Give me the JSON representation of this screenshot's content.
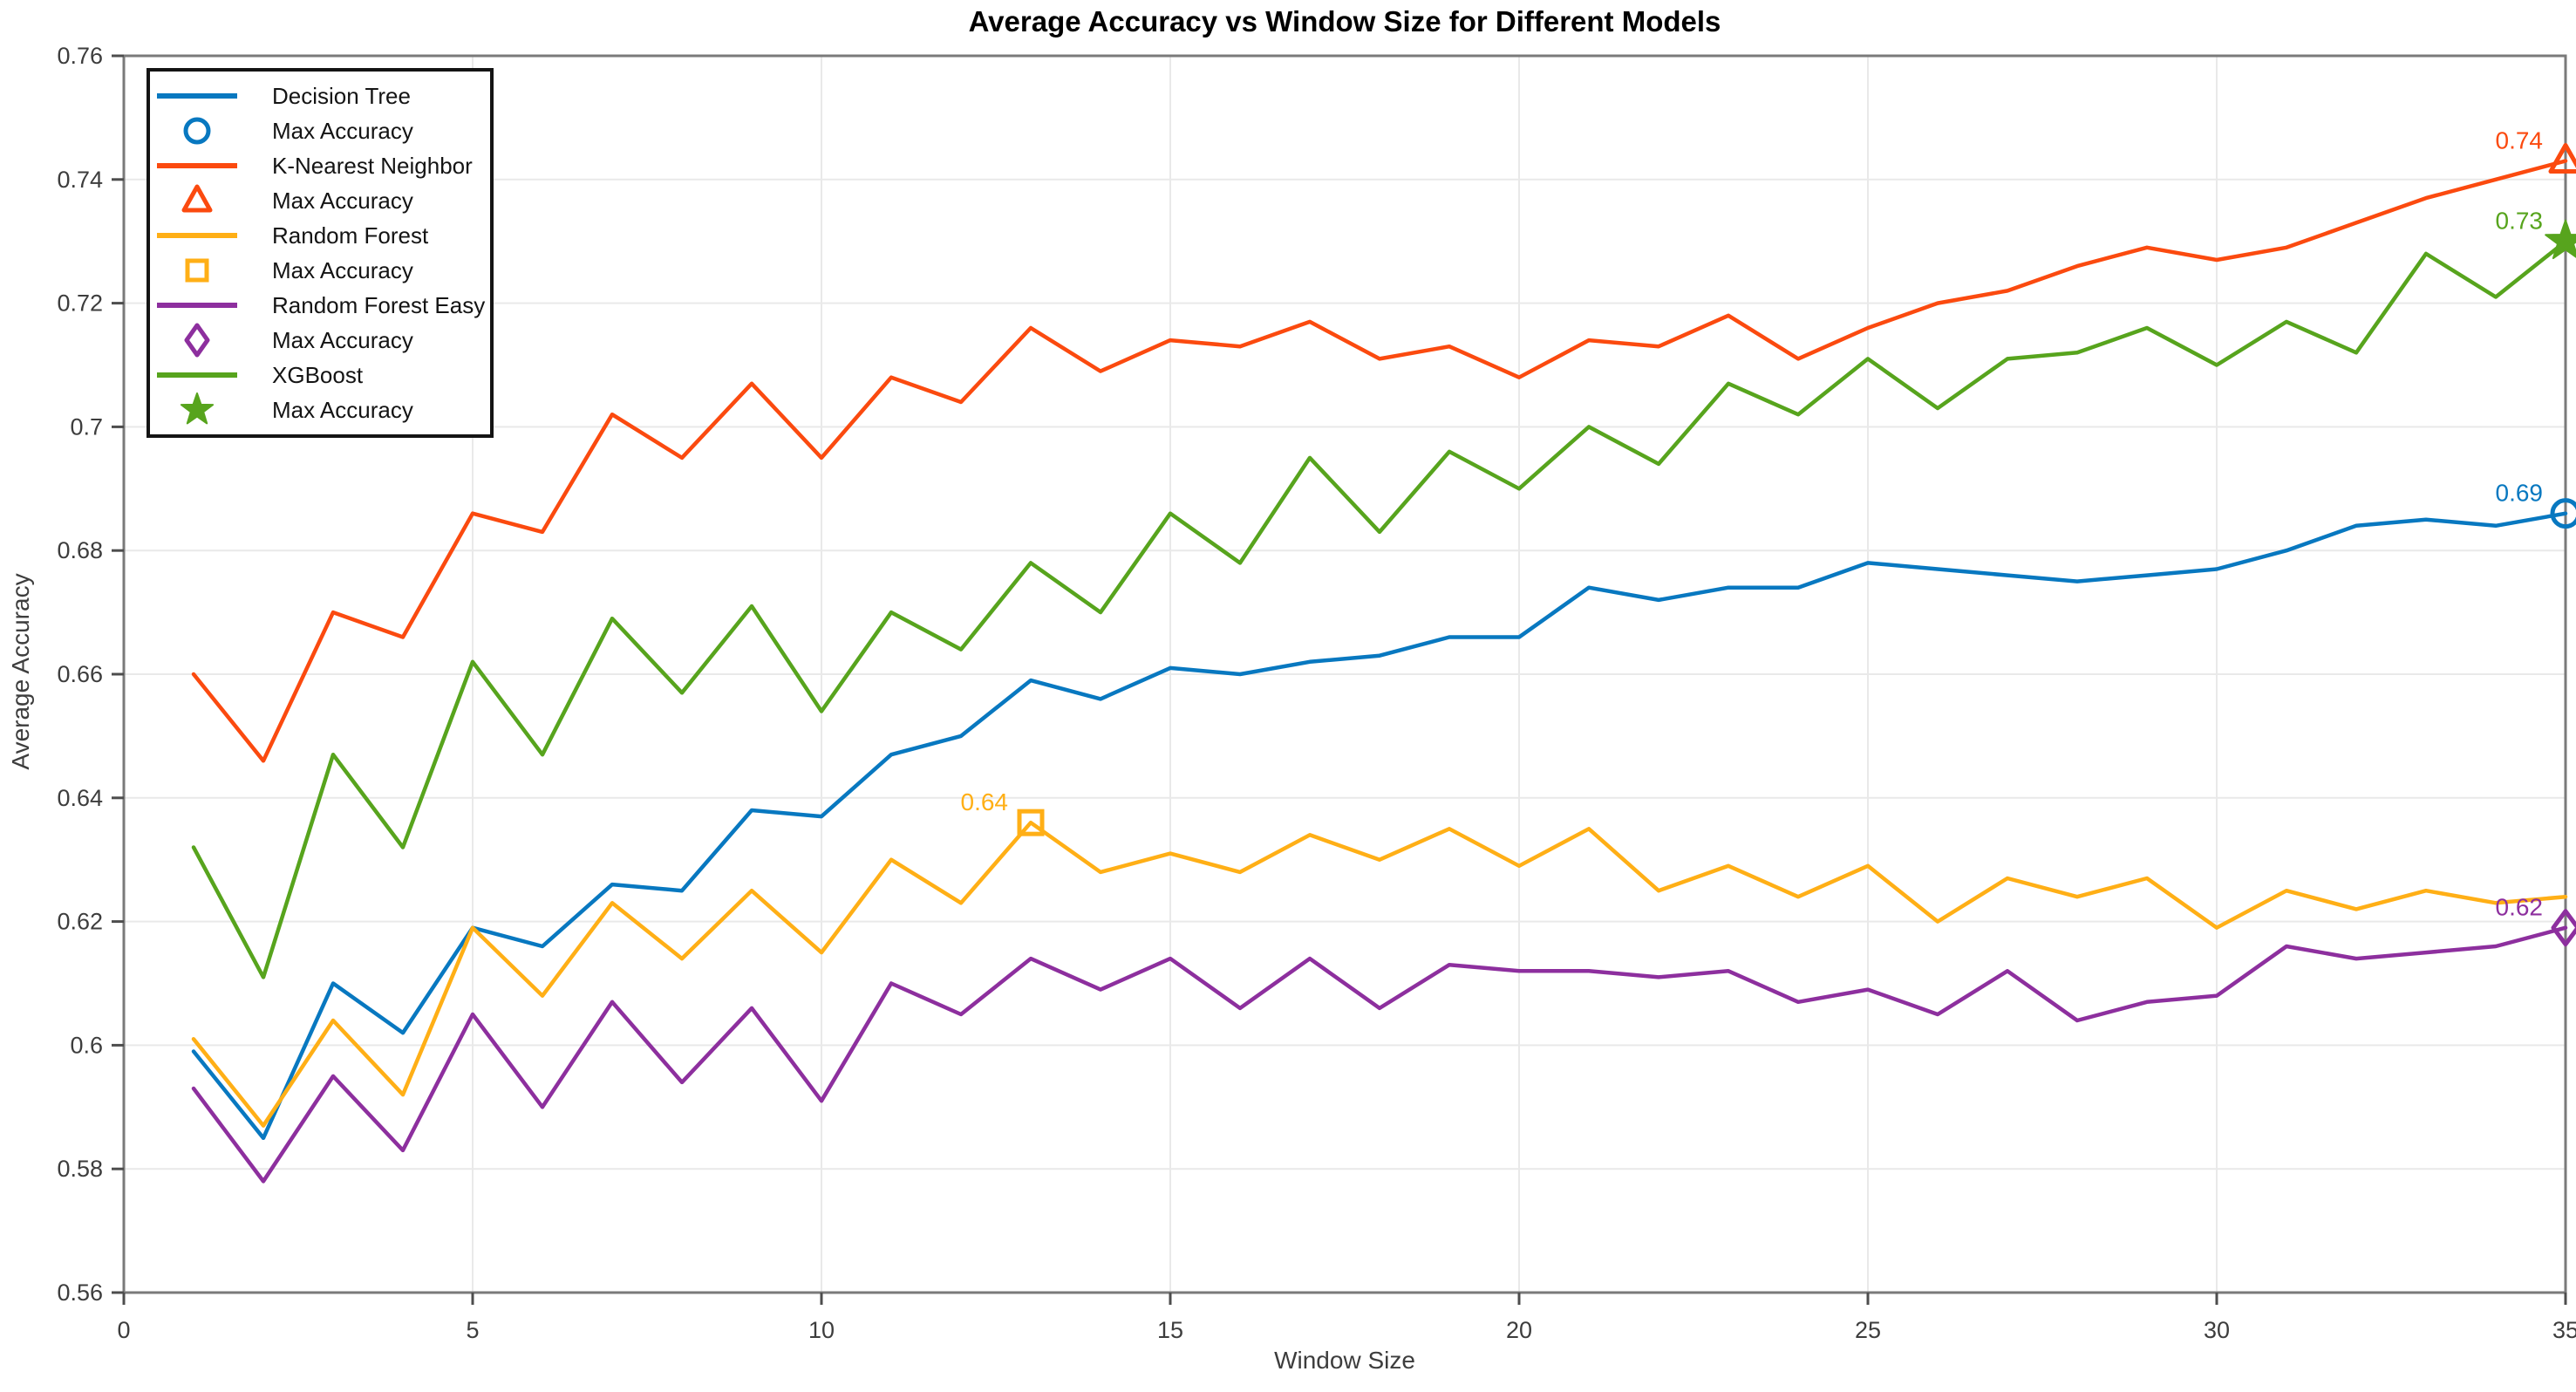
{
  "chart_data": {
    "type": "line",
    "title": "Average Accuracy vs Window Size for Different Models",
    "xlabel": "Window Size",
    "ylabel": "Average Accuracy",
    "xlim": [
      0,
      35
    ],
    "ylim": [
      0.56,
      0.76
    ],
    "grid": true,
    "legend_position": "top-left",
    "xticks": [
      0,
      5,
      10,
      15,
      20,
      25,
      30,
      35
    ],
    "xtick_labels": [
      "0",
      "5",
      "10",
      "15",
      "20",
      "25",
      "30",
      "35"
    ],
    "yticks": [
      0.56,
      0.58,
      0.6,
      0.62,
      0.64,
      0.66,
      0.68,
      0.7,
      0.72,
      0.74,
      0.76
    ],
    "ytick_labels": [
      "0.56",
      "0.58",
      "0.6",
      "0.62",
      "0.64",
      "0.66",
      "0.68",
      "0.7",
      "0.72",
      "0.74",
      "0.76"
    ],
    "x": [
      1,
      2,
      3,
      4,
      5,
      6,
      7,
      8,
      9,
      10,
      11,
      12,
      13,
      14,
      15,
      16,
      17,
      18,
      19,
      20,
      21,
      22,
      23,
      24,
      25,
      26,
      27,
      28,
      29,
      30,
      31,
      32,
      33,
      34,
      35
    ],
    "series": [
      {
        "name": "Decision Tree",
        "color": "#0878c0",
        "marker": "circle",
        "values": [
          0.599,
          0.585,
          0.61,
          0.602,
          0.619,
          0.616,
          0.626,
          0.625,
          0.638,
          0.637,
          0.647,
          0.65,
          0.659,
          0.656,
          0.661,
          0.66,
          0.662,
          0.663,
          0.666,
          0.666,
          0.674,
          0.672,
          0.674,
          0.674,
          0.678,
          0.677,
          0.676,
          0.675,
          0.676,
          0.677,
          0.68,
          0.684,
          0.685,
          0.684,
          0.686
        ],
        "max": {
          "x": 35,
          "value": 0.686,
          "label": "0.69"
        }
      },
      {
        "name": "K-Nearest Neighbor",
        "color": "#fb4a0f",
        "marker": "triangle",
        "values": [
          0.66,
          0.646,
          0.67,
          0.666,
          0.686,
          0.683,
          0.702,
          0.695,
          0.707,
          0.695,
          0.708,
          0.704,
          0.716,
          0.709,
          0.714,
          0.713,
          0.717,
          0.711,
          0.713,
          0.708,
          0.714,
          0.713,
          0.718,
          0.711,
          0.716,
          0.72,
          0.722,
          0.726,
          0.729,
          0.727,
          0.729,
          0.733,
          0.737,
          0.74,
          0.743
        ],
        "max": {
          "x": 35,
          "value": 0.743,
          "label": "0.74"
        }
      },
      {
        "name": "Random Forest",
        "color": "#ffaf16",
        "marker": "square",
        "values": [
          0.601,
          0.587,
          0.604,
          0.592,
          0.619,
          0.608,
          0.623,
          0.614,
          0.625,
          0.615,
          0.63,
          0.623,
          0.636,
          0.628,
          0.631,
          0.628,
          0.634,
          0.63,
          0.635,
          0.629,
          0.635,
          0.625,
          0.629,
          0.624,
          0.629,
          0.62,
          0.627,
          0.624,
          0.627,
          0.619,
          0.625,
          0.622,
          0.625,
          0.623,
          0.624
        ],
        "max": {
          "x": 13,
          "value": 0.636,
          "label": "0.64"
        }
      },
      {
        "name": "Random Forest Easy",
        "color": "#8d2f9e",
        "marker": "diamond",
        "values": [
          0.593,
          0.578,
          0.595,
          0.583,
          0.605,
          0.59,
          0.607,
          0.594,
          0.606,
          0.591,
          0.61,
          0.605,
          0.614,
          0.609,
          0.614,
          0.606,
          0.614,
          0.606,
          0.613,
          0.612,
          0.612,
          0.611,
          0.612,
          0.607,
          0.609,
          0.605,
          0.612,
          0.604,
          0.607,
          0.608,
          0.616,
          0.614,
          0.615,
          0.616,
          0.619
        ],
        "max": {
          "x": 35,
          "value": 0.619,
          "label": "0.62"
        }
      },
      {
        "name": "XGBoost",
        "color": "#57a41d",
        "marker": "star",
        "values": [
          0.632,
          0.611,
          0.647,
          0.632,
          0.662,
          0.647,
          0.669,
          0.657,
          0.671,
          0.654,
          0.67,
          0.664,
          0.678,
          0.67,
          0.686,
          0.678,
          0.695,
          0.683,
          0.696,
          0.69,
          0.7,
          0.694,
          0.707,
          0.702,
          0.711,
          0.703,
          0.711,
          0.712,
          0.716,
          0.71,
          0.717,
          0.712,
          0.728,
          0.721,
          0.73
        ],
        "max": {
          "x": 35,
          "value": 0.73,
          "label": "0.73"
        }
      }
    ],
    "legend": [
      {
        "label": "Decision Tree",
        "swatch": "line",
        "series": 0
      },
      {
        "label": "Max Accuracy",
        "swatch": "circle",
        "series": 0
      },
      {
        "label": "K-Nearest Neighbor",
        "swatch": "line",
        "series": 1
      },
      {
        "label": "Max Accuracy",
        "swatch": "triangle",
        "series": 1
      },
      {
        "label": "Random Forest",
        "swatch": "line",
        "series": 2
      },
      {
        "label": "Max Accuracy",
        "swatch": "square",
        "series": 2
      },
      {
        "label": "Random Forest Easy",
        "swatch": "line",
        "series": 3
      },
      {
        "label": "Max Accuracy",
        "swatch": "diamond",
        "series": 3
      },
      {
        "label": "XGBoost",
        "swatch": "line",
        "series": 4
      },
      {
        "label": "Max Accuracy",
        "swatch": "star",
        "series": 4
      }
    ],
    "colors": {
      "grid": "#e9e9e9",
      "spine": "#7a7a7a",
      "tick": "#4d4d4d",
      "tick_label": "#3d3d3d"
    }
  }
}
